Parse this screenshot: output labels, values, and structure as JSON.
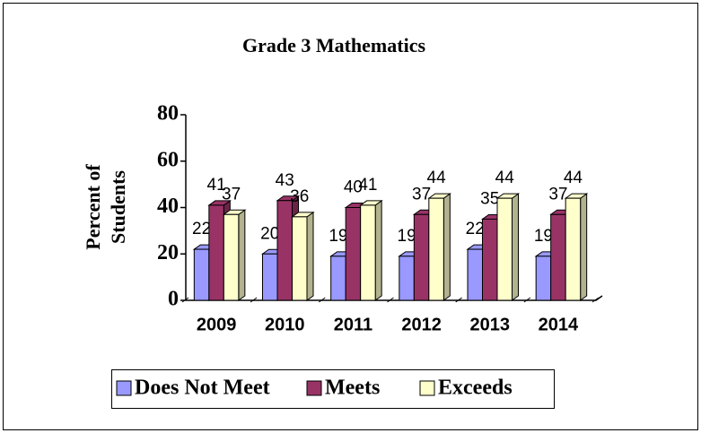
{
  "chart_data": {
    "type": "bar3d",
    "title": "Grade 3 Mathematics",
    "y_label": [
      "Percent of",
      "Students"
    ],
    "categories": [
      "2009",
      "2010",
      "2011",
      "2012",
      "2013",
      "2014"
    ],
    "series": [
      {
        "name": "Does Not Meet",
        "color": "#9999ff",
        "values": [
          22,
          20,
          19,
          19,
          22,
          19
        ]
      },
      {
        "name": "Meets",
        "color": "#993366",
        "values": [
          41,
          43,
          40,
          37,
          35,
          37
        ]
      },
      {
        "name": "Exceeds",
        "color": "#ffffcc",
        "values": [
          37,
          36,
          41,
          44,
          44,
          44
        ]
      }
    ],
    "ylim": [
      0,
      80
    ],
    "yticks": [
      0,
      20,
      40,
      60,
      80
    ],
    "legend": "bottom"
  }
}
